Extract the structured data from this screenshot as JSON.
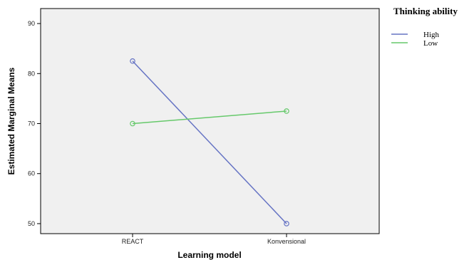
{
  "chart_data": {
    "type": "line",
    "title": "",
    "xlabel": "Learning model",
    "ylabel": "Estimated Marginal Means",
    "categories": [
      "REACT",
      "Konvensional"
    ],
    "ylim": [
      48,
      93
    ],
    "yticks": [
      50,
      60,
      70,
      80,
      90
    ],
    "grid": false,
    "legend_title": "Thinking ability",
    "legend_position": "top-right",
    "series": [
      {
        "name": "High",
        "values": [
          82.5,
          50.0
        ],
        "color": "#6674c4"
      },
      {
        "name": "Low",
        "values": [
          70.0,
          72.5
        ],
        "color": "#66c96b"
      }
    ],
    "plot_background": "#f0f0f0"
  }
}
